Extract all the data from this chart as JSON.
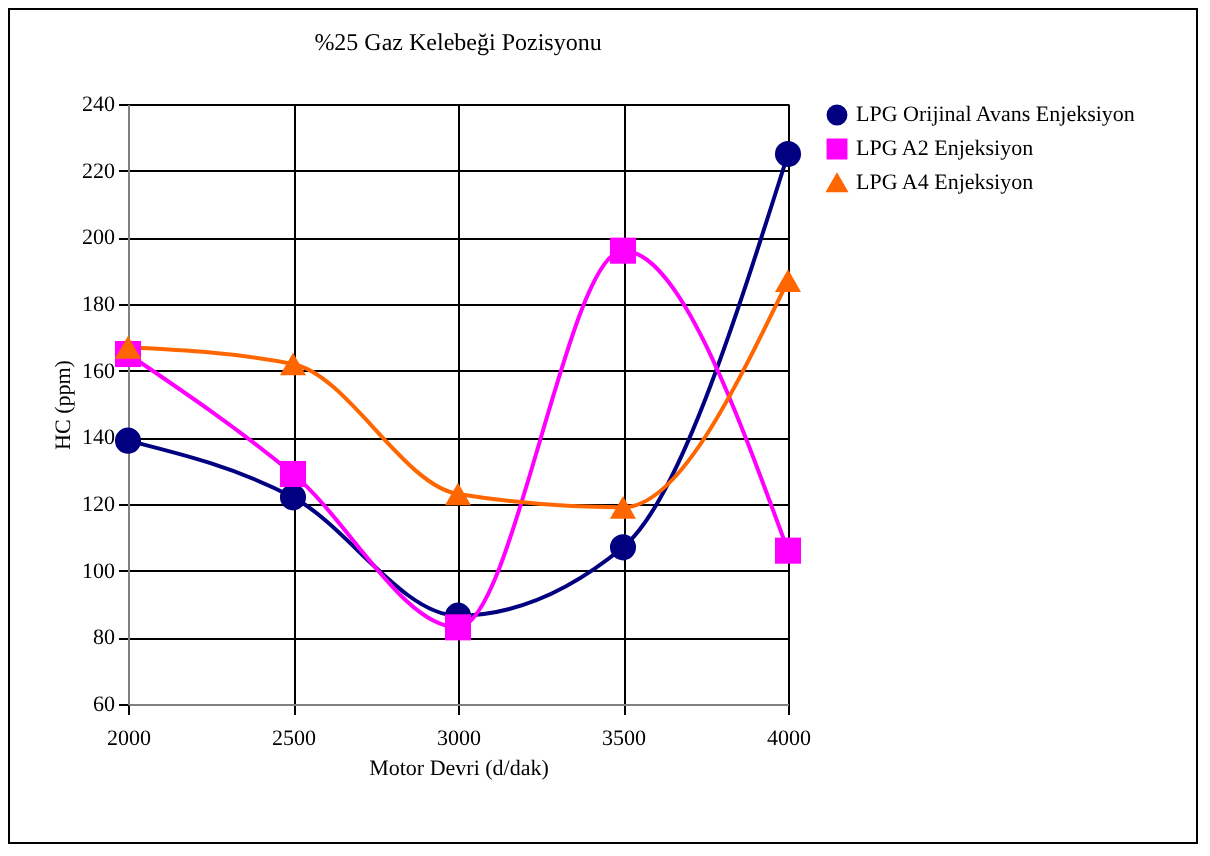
{
  "chart_data": {
    "type": "line",
    "title": "%25 Gaz Kelebeği Pozisyonu",
    "xlabel": "Motor Devri (d/dak)",
    "ylabel": "HC (ppm)",
    "x": [
      2000,
      2500,
      3000,
      3500,
      4000
    ],
    "xlim": [
      2000,
      4000
    ],
    "xticks": [
      2000,
      2500,
      3000,
      3500,
      4000
    ],
    "ylim": [
      60,
      240
    ],
    "yticks": [
      60,
      80,
      100,
      120,
      140,
      160,
      180,
      200,
      220,
      240
    ],
    "grid": true,
    "legend": "right",
    "line_style": "solid",
    "series": [
      {
        "name": "LPG Orijinal Avans Enjeksiyon",
        "color": "#000080",
        "marker": "circle",
        "values": [
          139,
          122,
          86.5,
          107,
          225
        ]
      },
      {
        "name": "LPG A2 Enjeksiyon",
        "color": "#ff00ff",
        "marker": "square",
        "values": [
          165,
          129,
          83,
          196,
          106
        ]
      },
      {
        "name": "LPG A4 Enjeksiyon",
        "color": "#ff6600",
        "marker": "triangle",
        "values": [
          167,
          162,
          123,
          119,
          187
        ]
      }
    ]
  }
}
